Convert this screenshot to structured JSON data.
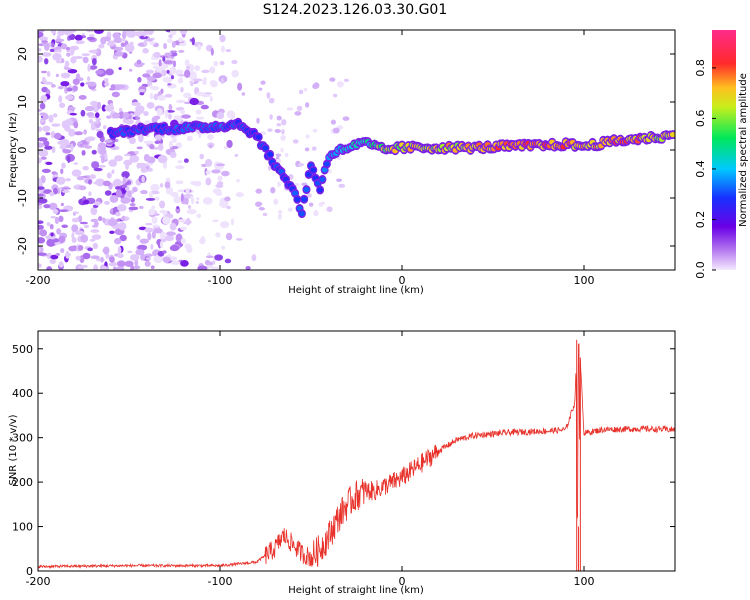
{
  "figure_title": "S124.2023.126.03.30.G01",
  "colors": {
    "snr_line": "#e8312a",
    "ridge_low": "#7a00e0",
    "ridge_mid": "#00c8ff",
    "ridge_high": "#ff2a2a"
  },
  "chart_data": [
    {
      "type": "heatmap",
      "title": "",
      "xlabel": "Height of straight line (km)",
      "ylabel": "Frequency (Hz)",
      "xlim": [
        -200,
        150
      ],
      "ylim": [
        -25,
        25
      ],
      "xticks": [
        -200,
        -100,
        0,
        100
      ],
      "yticks": [
        -20,
        -10,
        0,
        10,
        20
      ],
      "colorbar": {
        "label": "Normalized spectral amplitude",
        "range": [
          0.0,
          0.95
        ],
        "ticks": [
          0.0,
          0.2,
          0.4,
          0.6,
          0.8
        ],
        "colormap": "rainbow (purple-blue-cyan-green-yellow-red-pink)"
      },
      "ridge": {
        "x": [
          -160,
          -140,
          -120,
          -100,
          -90,
          -80,
          -70,
          -60,
          -55,
          -50,
          -45,
          -40,
          -30,
          -20,
          -10,
          0,
          20,
          40,
          60,
          80,
          90,
          100,
          120,
          150
        ],
        "y": [
          3.5,
          4.5,
          4.5,
          5.0,
          5.5,
          3.0,
          -3.0,
          -8.0,
          -13.0,
          -3.0,
          -8.0,
          -1.0,
          0.5,
          1.5,
          0.0,
          0.5,
          0.5,
          0.5,
          0.8,
          1.0,
          1.2,
          0.8,
          2.0,
          3.0
        ],
        "amplitude": [
          0.3,
          0.3,
          0.35,
          0.35,
          0.3,
          0.3,
          0.3,
          0.3,
          0.35,
          0.3,
          0.3,
          0.4,
          0.5,
          0.5,
          0.7,
          0.75,
          0.75,
          0.8,
          0.9,
          0.9,
          0.85,
          0.8,
          0.9,
          0.7
        ]
      },
      "noise_region_x": [
        -200,
        -80
      ]
    },
    {
      "type": "line",
      "title": "",
      "xlabel": "Height of straight line (km)",
      "ylabel": "SNR (10 * v/v)",
      "xlim": [
        -200,
        150
      ],
      "ylim": [
        0,
        540
      ],
      "xticks": [
        -200,
        -100,
        0,
        100
      ],
      "yticks": [
        0,
        100,
        200,
        300,
        400,
        500
      ],
      "series": [
        {
          "x": [
            -200,
            -150,
            -100,
            -80,
            -70,
            -65,
            -60,
            -55,
            -50,
            -45,
            -40,
            -35,
            -30,
            -25,
            -20,
            -15,
            -10,
            -5,
            0,
            10,
            20,
            30,
            40,
            60,
            80,
            90,
            95,
            96,
            97,
            98,
            100,
            110,
            130,
            150
          ],
          "y": [
            10,
            12,
            12,
            20,
            50,
            80,
            60,
            40,
            30,
            50,
            80,
            120,
            150,
            170,
            180,
            180,
            190,
            200,
            210,
            240,
            270,
            295,
            305,
            312,
            315,
            318,
            380,
            520,
            100,
            480,
            310,
            318,
            320,
            318
          ]
        }
      ]
    }
  ]
}
